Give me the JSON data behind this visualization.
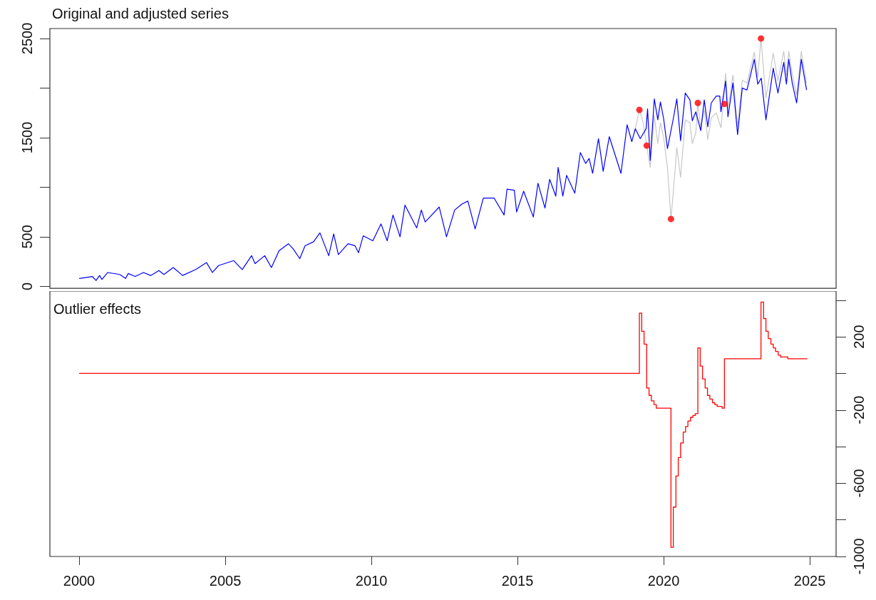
{
  "chart_data": [
    {
      "type": "line",
      "title": "Original and adjusted series",
      "xlim": [
        1999,
        2025.9
      ],
      "ylim": [
        -20,
        2600
      ],
      "yticks": [
        0,
        500,
        {
          "value": 1000,
          "label": null
        },
        1500,
        {
          "value": 2000,
          "label": null
        },
        2500
      ],
      "tick_labels": "y",
      "series": [
        {
          "color": "#c8c8c8",
          "x": [
            2019.03,
            2019.17,
            2019.3,
            2019.42,
            2019.54,
            2019.68,
            2019.8,
            2019.89,
            2020.0,
            2020.13,
            2020.25,
            2020.33,
            2020.45,
            2020.58,
            2020.74,
            2020.9,
            2020.98,
            2021.1,
            2021.17,
            2021.27,
            2021.39,
            2021.51,
            2021.63,
            2021.8,
            2021.96,
            2022.04,
            2022.12,
            2022.2,
            2022.37,
            2022.53,
            2022.69,
            2022.85,
            2023.1,
            2023.22,
            2023.33,
            2023.5,
            2023.75,
            2023.91,
            2024.11,
            2024.2,
            2024.28,
            2024.4,
            2024.55,
            2024.71,
            2024.89
          ],
          "values": [
            1590,
            1780,
            1650,
            1420,
            1200,
            1720,
            1440,
            1650,
            1500,
            1200,
            680,
            950,
            1400,
            1100,
            1680,
            1650,
            1440,
            1550,
            1850,
            1600,
            1780,
            1480,
            1700,
            1750,
            1600,
            1840,
            2150,
            1790,
            2130,
            1610,
            2080,
            2050,
            2360,
            2110,
            2500,
            1900,
            2350,
            2070,
            2370,
            2130,
            2370,
            2140,
            1930,
            2370,
            2050
          ]
        },
        {
          "color": "#0000ff",
          "x": [
            2000.0,
            2000.45,
            2000.58,
            2000.7,
            2000.78,
            2000.98,
            2001.39,
            2001.59,
            2001.68,
            2001.92,
            2002.2,
            2002.45,
            2002.73,
            2002.9,
            2003.22,
            2003.54,
            2003.99,
            2004.36,
            2004.56,
            2004.77,
            2005.29,
            2005.58,
            2005.9,
            2006.02,
            2006.35,
            2006.58,
            2006.84,
            2007.16,
            2007.32,
            2007.55,
            2007.73,
            2008.02,
            2008.24,
            2008.54,
            2008.71,
            2008.87,
            2009.2,
            2009.44,
            2009.56,
            2009.72,
            2010.05,
            2010.33,
            2010.54,
            2010.74,
            2010.98,
            2011.15,
            2011.55,
            2011.71,
            2011.84,
            2012.32,
            2012.57,
            2012.85,
            2013.1,
            2013.3,
            2013.55,
            2013.83,
            2014.2,
            2014.54,
            2014.64,
            2014.89,
            2014.97,
            2015.21,
            2015.54,
            2015.7,
            2015.94,
            2016.1,
            2016.31,
            2016.39,
            2016.55,
            2016.68,
            2016.96,
            2017.15,
            2017.33,
            2017.45,
            2017.57,
            2017.77,
            2017.93,
            2018.14,
            2018.54,
            2018.75,
            2018.91,
            2019.03,
            2019.2,
            2019.4,
            2019.45,
            2019.54,
            2019.68,
            2019.8,
            2019.89,
            2020.0,
            2020.13,
            2020.33,
            2020.45,
            2020.58,
            2020.74,
            2020.9,
            2020.98,
            2021.1,
            2021.27,
            2021.39,
            2021.51,
            2021.63,
            2021.8,
            2021.92,
            2021.96,
            2022.12,
            2022.2,
            2022.37,
            2022.53,
            2022.69,
            2022.85,
            2023.1,
            2023.22,
            2023.34,
            2023.5,
            2023.75,
            2023.91,
            2024.11,
            2024.2,
            2024.28,
            2024.4,
            2024.55,
            2024.71,
            2024.89
          ],
          "values": [
            80,
            100,
            60,
            110,
            70,
            140,
            120,
            80,
            130,
            100,
            140,
            110,
            160,
            120,
            190,
            110,
            170,
            240,
            140,
            210,
            260,
            170,
            310,
            230,
            310,
            190,
            360,
            430,
            380,
            280,
            410,
            450,
            540,
            310,
            530,
            320,
            430,
            410,
            340,
            510,
            460,
            630,
            460,
            720,
            500,
            820,
            590,
            770,
            650,
            800,
            500,
            770,
            830,
            860,
            580,
            890,
            890,
            720,
            980,
            970,
            750,
            960,
            700,
            1040,
            790,
            1080,
            910,
            1200,
            910,
            1120,
            940,
            1350,
            1240,
            1290,
            1140,
            1490,
            1160,
            1510,
            1140,
            1630,
            1460,
            1590,
            1490,
            1590,
            1790,
            1270,
            1890,
            1680,
            1860,
            1690,
            1390,
            1690,
            1890,
            1470,
            1950,
            1880,
            1670,
            1760,
            1570,
            1880,
            1610,
            1850,
            1920,
            1920,
            1760,
            2070,
            1710,
            2050,
            1530,
            2000,
            1980,
            2290,
            2040,
            2100,
            1680,
            2200,
            1950,
            2260,
            2040,
            2290,
            2050,
            1850,
            2290,
            1980
          ]
        },
        {
          "type": "scatter",
          "color": "#ff0000",
          "marker": "circle",
          "x": [
            2019.17,
            2019.42,
            2020.25,
            2021.17,
            2022.08,
            2023.33
          ],
          "values": [
            1780,
            1420,
            680,
            1850,
            1840,
            2500
          ]
        }
      ]
    },
    {
      "type": "step",
      "title": "Outlier effects",
      "xlim": [
        1999,
        2025.9
      ],
      "xticks": [
        2000,
        2005,
        2010,
        2015,
        2020,
        2025
      ],
      "y2lim": [
        -1000,
        450
      ],
      "y2ticks": [
        {
          "value": 400,
          "label": null
        },
        200,
        {
          "value": 0,
          "label": null
        },
        -200,
        {
          "value": -400,
          "label": null
        },
        -600,
        {
          "value": -800,
          "label": null
        },
        -1000
      ],
      "series": [
        {
          "axis": "y2",
          "color": "#ff0000",
          "x": [
            2000.0,
            2019.08,
            2019.17,
            2019.25,
            2019.33,
            2019.42,
            2019.5,
            2019.58,
            2019.67,
            2019.75,
            2019.92,
            2020.17,
            2020.25,
            2020.33,
            2020.42,
            2020.5,
            2020.58,
            2020.67,
            2020.75,
            2020.83,
            2020.92,
            2021.0,
            2021.08,
            2021.17,
            2021.25,
            2021.33,
            2021.42,
            2021.5,
            2021.58,
            2021.67,
            2021.75,
            2021.83,
            2021.92,
            2022.0,
            2022.08,
            2022.5,
            2023.0,
            2023.25,
            2023.33,
            2023.42,
            2023.5,
            2023.58,
            2023.67,
            2023.75,
            2023.83,
            2023.92,
            2024.0,
            2024.25,
            2024.5,
            2024.92
          ],
          "values": [
            0,
            0,
            330,
            230,
            160,
            -80,
            -120,
            -150,
            -170,
            -190,
            -190,
            -190,
            -950,
            -730,
            -560,
            -460,
            -380,
            -320,
            -290,
            -260,
            -240,
            -230,
            -220,
            140,
            40,
            -30,
            -80,
            -120,
            -140,
            -160,
            -170,
            -180,
            -180,
            -190,
            80,
            80,
            80,
            80,
            390,
            300,
            230,
            190,
            160,
            140,
            120,
            100,
            90,
            80,
            80,
            80
          ]
        }
      ]
    }
  ]
}
